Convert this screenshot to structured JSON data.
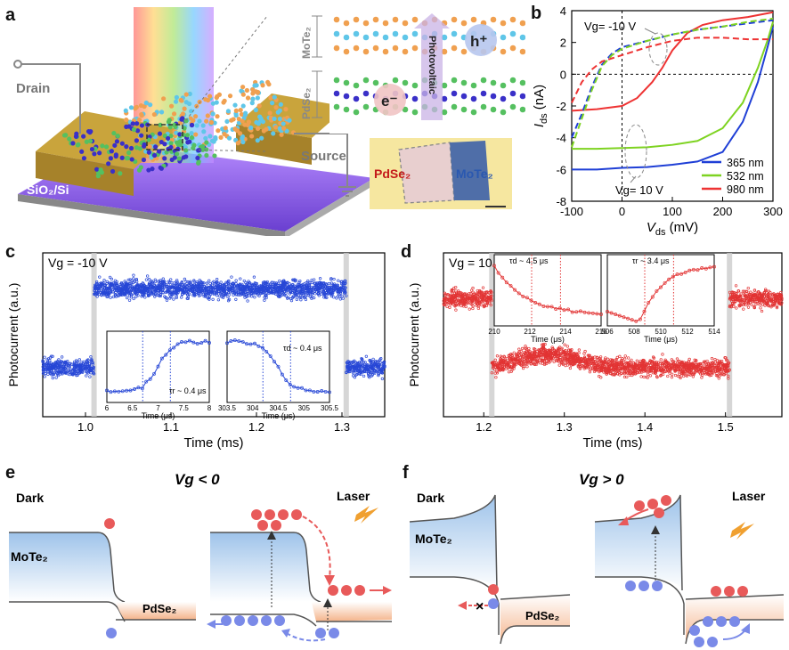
{
  "panels": {
    "a": {
      "letter": "a",
      "drain": "Drain",
      "source": "Source",
      "substrate": "SiO₂/Si",
      "layer_top": "MoTe₂",
      "layer_bottom": "PdSe₂",
      "hole": "h⁺",
      "electron": "e⁻",
      "effect": "Photovoltaic",
      "optical_left": "PdSe₂",
      "optical_right": "MoTe₂"
    },
    "b": {
      "letter": "b",
      "xlabel_main": "V",
      "xlabel_sub": "ds",
      "xlabel_unit": " (mV)",
      "ylabel_main": "I",
      "ylabel_sub": "ds",
      "ylabel_unit": " (nA)",
      "annotation_neg": "Vg= -10 V",
      "annotation_pos": "Vg= 10 V",
      "legend": [
        "365 nm",
        "532 nm",
        "980 nm"
      ]
    },
    "c": {
      "letter": "c",
      "gate": "Vg = -10 V",
      "xlabel": "Time (ms)",
      "ylabel": "Photocurrent (a.u.)",
      "inset_rise": "τr ~ 0.4 μs",
      "inset_decay": "τd ~ 0.4 μs",
      "inset_xlabel": "Time (μs)"
    },
    "d": {
      "letter": "d",
      "gate": "Vg = 10 V",
      "xlabel": "Time (ms)",
      "ylabel": "Photocurrent (a.u.)",
      "inset_decay": "τd ~ 4.5 μs",
      "inset_rise": "τr ~ 3.4 μs",
      "inset_xlabel": "Time (μs)"
    },
    "e": {
      "letter": "e",
      "title": "Vg < 0",
      "dark": "Dark",
      "laser": "Laser",
      "mote2": "MoTe₂",
      "pdse2": "PdSe₂"
    },
    "f": {
      "letter": "f",
      "title": "Vg > 0",
      "dark": "Dark",
      "laser": "Laser",
      "mote2": "MoTe₂",
      "pdse2": "PdSe₂",
      "block": "×"
    }
  },
  "chart_data": [
    {
      "panel": "b",
      "type": "line",
      "xlabel": "Vds (mV)",
      "ylabel": "Ids (nA)",
      "xlim": [
        -100,
        300
      ],
      "ylim": [
        -8,
        4
      ],
      "xticks": [
        -100,
        0,
        100,
        200,
        300
      ],
      "yticks": [
        -8,
        -6,
        -4,
        -2,
        0,
        2,
        4
      ],
      "series": [
        {
          "name": "365 nm",
          "color": "#1f3fd6",
          "condition": "Vg= 10 V",
          "style": "solid",
          "x": [
            -100,
            -50,
            0,
            50,
            100,
            150,
            200,
            240,
            270,
            290,
            300
          ],
          "y": [
            -6.0,
            -6.0,
            -5.9,
            -5.85,
            -5.7,
            -5.5,
            -4.9,
            -3.0,
            -0.5,
            1.8,
            3.0
          ]
        },
        {
          "name": "532 nm",
          "color": "#7ed321",
          "condition": "Vg= 10 V",
          "style": "solid",
          "x": [
            -100,
            -50,
            0,
            50,
            100,
            150,
            200,
            240,
            270,
            290,
            300
          ],
          "y": [
            -4.7,
            -4.7,
            -4.65,
            -4.6,
            -4.45,
            -4.2,
            -3.4,
            -1.8,
            0.4,
            2.2,
            3.3
          ]
        },
        {
          "name": "980 nm",
          "color": "#ee3333",
          "condition": "Vg= 10 V",
          "style": "solid",
          "x": [
            -100,
            -50,
            0,
            30,
            60,
            80,
            100,
            130,
            160,
            200,
            250,
            300
          ],
          "y": [
            -2.3,
            -2.2,
            -2.0,
            -1.5,
            -0.5,
            0.4,
            1.5,
            2.6,
            3.1,
            3.4,
            3.6,
            3.9
          ]
        },
        {
          "name": "365 nm",
          "color": "#1f3fd6",
          "condition": "Vg= -10 V",
          "style": "dashed",
          "x": [
            -100,
            -80,
            -60,
            -40,
            -20,
            0,
            50,
            100,
            150,
            200,
            250,
            300
          ],
          "y": [
            -4.0,
            -2.5,
            -0.8,
            0.6,
            1.3,
            1.7,
            2.1,
            2.5,
            2.8,
            3.0,
            3.2,
            3.4
          ]
        },
        {
          "name": "532 nm",
          "color": "#7ed321",
          "condition": "Vg= -10 V",
          "style": "dashed",
          "x": [
            -100,
            -80,
            -60,
            -40,
            -20,
            0,
            50,
            100,
            150,
            200,
            250,
            300
          ],
          "y": [
            -4.6,
            -2.8,
            -1.0,
            0.5,
            1.2,
            1.6,
            2.1,
            2.5,
            2.8,
            3.0,
            3.3,
            3.5
          ]
        },
        {
          "name": "980 nm",
          "color": "#ee3333",
          "condition": "Vg= -10 V",
          "style": "dashed",
          "x": [
            -100,
            -80,
            -60,
            -40,
            -20,
            0,
            50,
            100,
            150,
            200,
            250,
            300
          ],
          "y": [
            -1.8,
            -0.5,
            0.3,
            0.8,
            1.0,
            1.2,
            1.7,
            2.1,
            2.3,
            2.3,
            2.2,
            2.2
          ]
        }
      ]
    },
    {
      "panel": "c",
      "type": "scatter",
      "xlabel": "Time (ms)",
      "ylabel": "Photocurrent (a.u.)",
      "xlim": [
        0.95,
        1.35
      ],
      "xticks": [
        1.0,
        1.1,
        1.2,
        1.3
      ],
      "on_interval": [
        1.01,
        1.305
      ],
      "low_level": 0.3,
      "high_level": 0.78,
      "color": "#2747d6"
    },
    {
      "panel": "d",
      "type": "scatter",
      "xlabel": "Time (ms)",
      "ylabel": "Photocurrent (a.u.)",
      "xlim": [
        1.15,
        1.57
      ],
      "xticks": [
        1.2,
        1.3,
        1.4,
        1.5
      ],
      "on_interval": [
        1.21,
        1.505
      ],
      "low_level": 0.72,
      "high_level": 0.3,
      "color": "#e23434"
    }
  ],
  "insets": {
    "c_left": {
      "xticks": [
        6.0,
        6.5,
        7.0,
        7.5,
        8.0
      ]
    },
    "c_right": {
      "xticks": [
        303.5,
        304.0,
        304.5,
        305.0,
        305.5
      ]
    },
    "d_left": {
      "xticks": [
        210,
        212,
        214,
        216
      ]
    },
    "d_right": {
      "xticks": [
        506,
        508,
        510,
        512,
        514
      ]
    }
  }
}
